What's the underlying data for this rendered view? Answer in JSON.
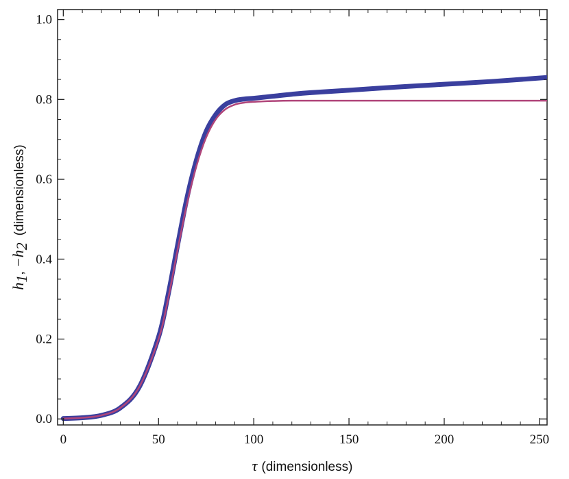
{
  "chart_data": {
    "type": "line",
    "title": "",
    "xlabel": {
      "symbol": "τ",
      "text": "(dimensionless)"
    },
    "ylabel": {
      "h1": "h",
      "h1_sub": "1",
      "sep": ",",
      "h2": "−h",
      "h2_sub": "2",
      "text": "(dimensionless)"
    },
    "xlim": [
      -3,
      254
    ],
    "ylim": [
      -0.015,
      1.025
    ],
    "xticks": [
      0,
      50,
      100,
      150,
      200,
      250
    ],
    "xtick_labels": [
      "0",
      "50",
      "100",
      "150",
      "200",
      "250"
    ],
    "yticks": [
      0.0,
      0.2,
      0.4,
      0.6,
      0.8,
      1.0
    ],
    "ytick_labels": [
      "0.0",
      "0.2",
      "0.4",
      "0.6",
      "0.8",
      "1.0"
    ],
    "grid": false,
    "series": [
      {
        "color": "#3a3f9e",
        "x": [
          0,
          10,
          20,
          30,
          40,
          50,
          55,
          60,
          65,
          70,
          75,
          80,
          85,
          90,
          95,
          100,
          110,
          120,
          130,
          150,
          175,
          200,
          225,
          254
        ],
        "y": [
          0.001,
          0.003,
          0.009,
          0.028,
          0.081,
          0.205,
          0.31,
          0.435,
          0.555,
          0.65,
          0.72,
          0.762,
          0.787,
          0.797,
          0.801,
          0.803,
          0.808,
          0.813,
          0.817,
          0.823,
          0.831,
          0.838,
          0.845,
          0.855
        ]
      },
      {
        "color": "#b0457a",
        "x": [
          0,
          10,
          20,
          30,
          40,
          50,
          55,
          60,
          65,
          70,
          75,
          80,
          85,
          90,
          95,
          100,
          110,
          120,
          140,
          170,
          200,
          254
        ],
        "y": [
          0.001,
          0.003,
          0.009,
          0.028,
          0.081,
          0.2,
          0.3,
          0.423,
          0.54,
          0.635,
          0.705,
          0.75,
          0.775,
          0.787,
          0.792,
          0.794,
          0.796,
          0.797,
          0.797,
          0.797,
          0.797,
          0.797
        ]
      }
    ]
  }
}
